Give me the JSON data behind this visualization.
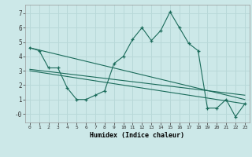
{
  "xlabel": "Humidex (Indice chaleur)",
  "background_color": "#cce8e8",
  "grid_color": "#b8d8d8",
  "line_color": "#1a6b5a",
  "xlim": [
    -0.5,
    23.5
  ],
  "ylim": [
    -0.6,
    7.6
  ],
  "xticks": [
    0,
    1,
    2,
    3,
    4,
    5,
    6,
    7,
    8,
    9,
    10,
    11,
    12,
    13,
    14,
    15,
    16,
    17,
    18,
    19,
    20,
    21,
    22,
    23
  ],
  "yticks": [
    0,
    1,
    2,
    3,
    4,
    5,
    6,
    7
  ],
  "ytick_labels": [
    "-0",
    "1",
    "2",
    "3",
    "4",
    "5",
    "6",
    "7"
  ],
  "data_line": {
    "x": [
      0,
      1,
      2,
      3,
      4,
      5,
      6,
      7,
      8,
      9,
      10,
      11,
      12,
      13,
      14,
      15,
      16,
      17,
      18,
      19,
      20,
      21,
      22,
      23
    ],
    "y": [
      4.6,
      4.4,
      3.2,
      3.2,
      1.8,
      1.0,
      1.0,
      1.3,
      1.6,
      3.5,
      4.0,
      5.2,
      6.0,
      5.1,
      5.8,
      7.1,
      6.0,
      4.9,
      4.4,
      0.4,
      0.4,
      1.0,
      -0.2,
      0.7
    ]
  },
  "trend_lines": [
    {
      "x": [
        0,
        23
      ],
      "y": [
        4.6,
        1.0
      ]
    },
    {
      "x": [
        0,
        23
      ],
      "y": [
        3.1,
        1.3
      ]
    },
    {
      "x": [
        0,
        23
      ],
      "y": [
        3.0,
        0.7
      ]
    }
  ]
}
